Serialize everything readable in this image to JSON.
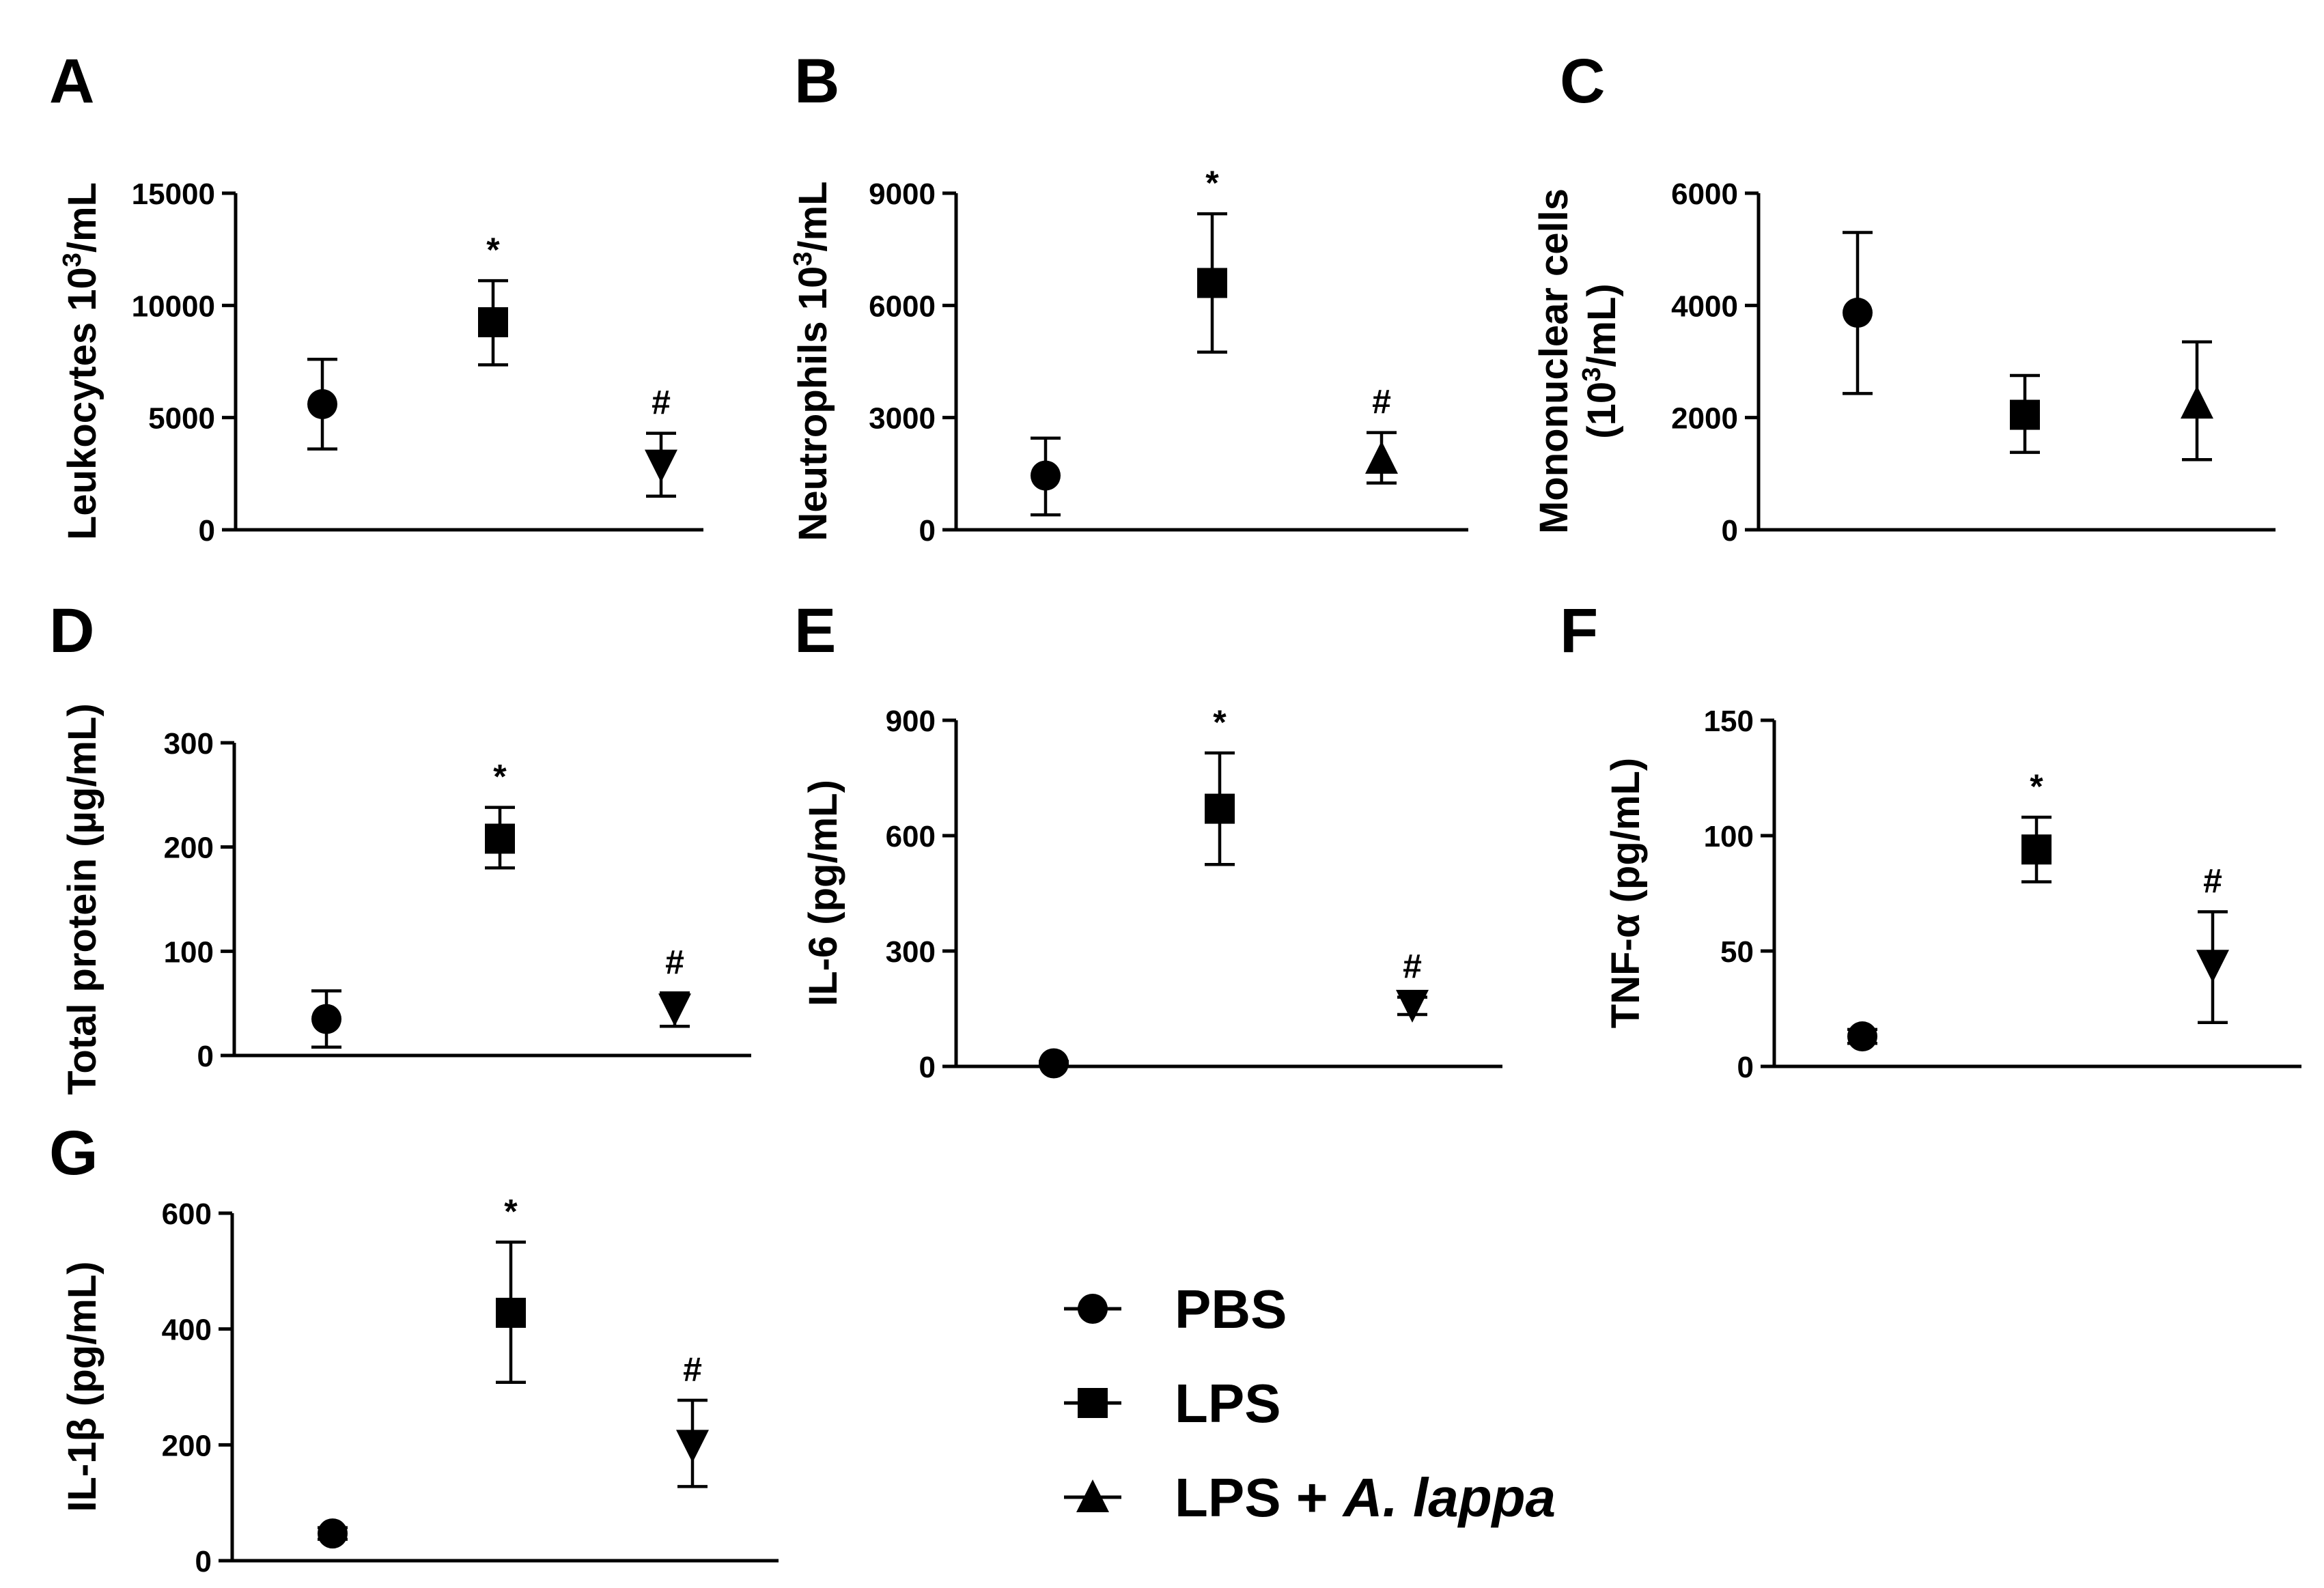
{
  "figure": {
    "legend": [
      {
        "marker": "circle",
        "label": "PBS"
      },
      {
        "marker": "square",
        "label": "LPS"
      },
      {
        "marker": "triangle-up",
        "label_main": "LPS + ",
        "label_italic": "A. lappa"
      }
    ]
  },
  "chart_data": [
    {
      "panel": "A",
      "type": "scatter",
      "ylabel": "Leukocytes 10",
      "ylabel_sup": "3",
      "ylabel_tail": "/mL",
      "ylim": [
        0,
        15000
      ],
      "yticks": [
        0,
        5000,
        10000,
        15000
      ],
      "points": [
        {
          "group": "PBS",
          "marker": "circle",
          "value": 5600,
          "err_low": 3600,
          "err_high": 7600,
          "annotation": ""
        },
        {
          "group": "LPS",
          "marker": "square",
          "value": 9250,
          "err_low": 7350,
          "err_high": 11100,
          "annotation": "*"
        },
        {
          "group": "LPS + A. lappa",
          "marker": "triangle-down",
          "value": 2900,
          "err_low": 1500,
          "err_high": 4300,
          "annotation": "#"
        }
      ]
    },
    {
      "panel": "B",
      "type": "scatter",
      "ylabel": "Neutrophils 10",
      "ylabel_sup": "3",
      "ylabel_tail": "/mL",
      "ylim": [
        0,
        9000
      ],
      "yticks": [
        0,
        3000,
        6000,
        9000
      ],
      "points": [
        {
          "group": "PBS",
          "marker": "circle",
          "value": 1450,
          "err_low": 400,
          "err_high": 2450,
          "annotation": ""
        },
        {
          "group": "LPS",
          "marker": "square",
          "value": 6600,
          "err_low": 4750,
          "err_high": 8450,
          "annotation": "*"
        },
        {
          "group": "LPS + A. lappa",
          "marker": "triangle-up",
          "value": 1900,
          "err_low": 1250,
          "err_high": 2600,
          "annotation": "#"
        }
      ]
    },
    {
      "panel": "C",
      "type": "scatter",
      "ylabel": "Mononuclear cells",
      "ylabel_line2": "(10",
      "ylabel_line2_sup": "3",
      "ylabel_line2_tail": "/mL)",
      "ylim": [
        0,
        6000
      ],
      "yticks": [
        0,
        2000,
        4000,
        6000
      ],
      "points": [
        {
          "group": "PBS",
          "marker": "circle",
          "value": 3870,
          "err_low": 2430,
          "err_high": 5300,
          "annotation": ""
        },
        {
          "group": "LPS",
          "marker": "square",
          "value": 2050,
          "err_low": 1380,
          "err_high": 2750,
          "annotation": ""
        },
        {
          "group": "LPS + A. lappa",
          "marker": "triangle-up",
          "value": 2250,
          "err_low": 1250,
          "err_high": 3350,
          "annotation": ""
        }
      ]
    },
    {
      "panel": "D",
      "type": "scatter",
      "ylabel": "Total protein (µg/mL)",
      "ylim": [
        0,
        300
      ],
      "yticks": [
        0,
        100,
        200,
        300
      ],
      "points": [
        {
          "group": "PBS",
          "marker": "circle",
          "value": 35,
          "err_low": 8,
          "err_high": 62,
          "annotation": ""
        },
        {
          "group": "LPS",
          "marker": "square",
          "value": 208,
          "err_low": 180,
          "err_high": 238,
          "annotation": "*"
        },
        {
          "group": "LPS + A. lappa",
          "marker": "triangle-down",
          "value": 45,
          "err_low": 28,
          "err_high": 60,
          "annotation": "#"
        }
      ]
    },
    {
      "panel": "E",
      "type": "scatter",
      "ylabel": "IL-6 (pg/mL)",
      "ylim": [
        0,
        900
      ],
      "yticks": [
        0,
        300,
        600,
        900
      ],
      "points": [
        {
          "group": "PBS",
          "marker": "circle",
          "value": 8,
          "err_low": 3,
          "err_high": 13,
          "annotation": ""
        },
        {
          "group": "LPS",
          "marker": "square",
          "value": 670,
          "err_low": 525,
          "err_high": 815,
          "annotation": "*"
        },
        {
          "group": "LPS + A. lappa",
          "marker": "triangle-down",
          "value": 160,
          "err_low": 135,
          "err_high": 180,
          "annotation": "#"
        }
      ]
    },
    {
      "panel": "F",
      "type": "scatter",
      "ylabel": "TNF-α (pg/mL)",
      "ylim": [
        0,
        150
      ],
      "yticks": [
        0,
        50,
        100,
        150
      ],
      "points": [
        {
          "group": "PBS",
          "marker": "circle",
          "value": 13,
          "err_low": 10,
          "err_high": 16,
          "annotation": ""
        },
        {
          "group": "LPS",
          "marker": "square",
          "value": 94,
          "err_low": 80,
          "err_high": 108,
          "annotation": "*"
        },
        {
          "group": "LPS + A. lappa",
          "marker": "triangle-down",
          "value": 44,
          "err_low": 19,
          "err_high": 67,
          "annotation": "#"
        }
      ]
    },
    {
      "panel": "G",
      "type": "scatter",
      "ylabel": "IL-1β (pg/mL)",
      "ylim": [
        0,
        600
      ],
      "yticks": [
        0,
        200,
        400,
        600
      ],
      "points": [
        {
          "group": "PBS",
          "marker": "circle",
          "value": 47,
          "err_low": 37,
          "err_high": 57,
          "annotation": ""
        },
        {
          "group": "LPS",
          "marker": "square",
          "value": 428,
          "err_low": 308,
          "err_high": 550,
          "annotation": "*"
        },
        {
          "group": "LPS + A. lappa",
          "marker": "triangle-down",
          "value": 200,
          "err_low": 128,
          "err_high": 277,
          "annotation": "#"
        }
      ]
    }
  ]
}
